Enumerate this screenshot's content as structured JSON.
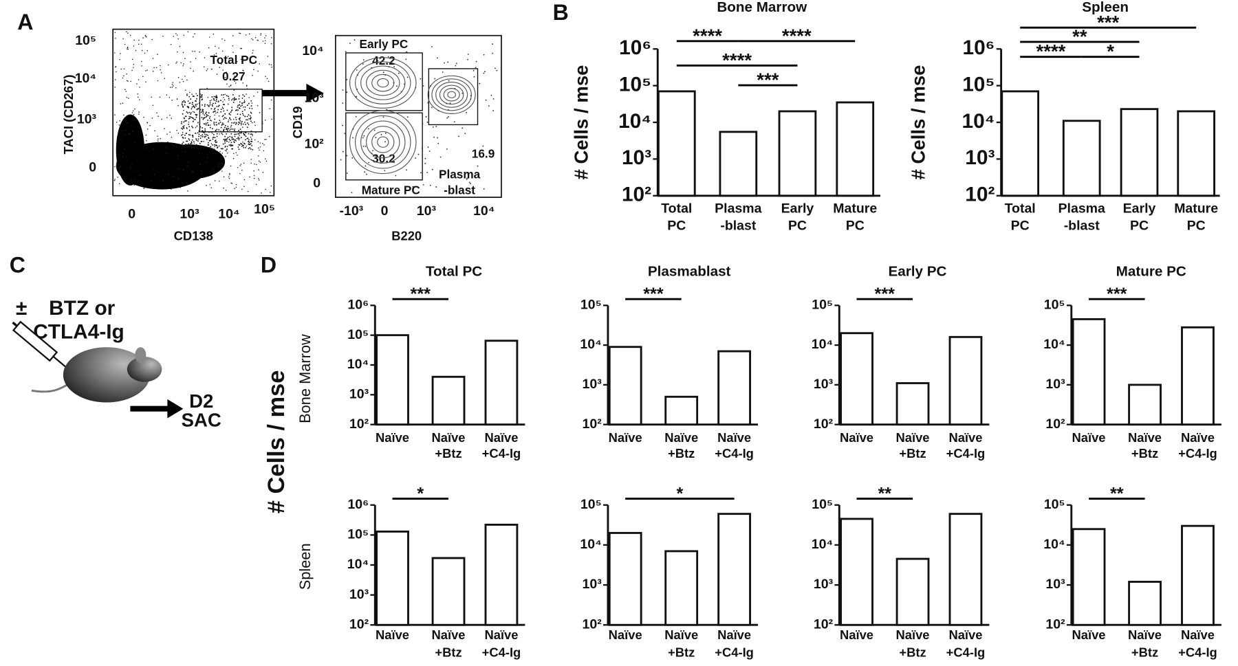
{
  "panel_labels": [
    "A",
    "B",
    "C",
    "D"
  ],
  "panel_a": {
    "plot1": {
      "y_label": "TACI (CD267)",
      "x_label": "CD138",
      "yticks": [
        "10⁵",
        "10⁴",
        "10³",
        "0"
      ],
      "xticks": [
        "0",
        "10³",
        "10⁴",
        "10⁵"
      ],
      "gate": "Total PC",
      "gate_value": "0.27"
    },
    "plot2": {
      "y_label": "CD19",
      "x_label": "B220",
      "yticks": [
        "10⁴",
        "10³",
        "10²",
        "0"
      ],
      "xticks": [
        "-10³",
        "0",
        "10³",
        "10⁴"
      ],
      "gates": [
        {
          "name": [
            "Early PC"
          ],
          "value": "42.2"
        },
        {
          "name": [
            "Mature PC"
          ],
          "value": "30.2"
        },
        {
          "name": [
            "Plasma",
            "-blast"
          ],
          "value": "16.9"
        }
      ]
    }
  },
  "panel_c": {
    "treatment": [
      "±",
      "BTZ or",
      "CTLA4-Ig"
    ],
    "outcome": [
      "D2",
      "SAC"
    ]
  },
  "panel_d": {
    "y_label": "# Cells / mse",
    "rows": [
      "Bone Marrow",
      "Spleen"
    ]
  },
  "chart_data": [
    {
      "type": "bar",
      "title": "Bone Marrow",
      "y_label": "# Cells / mse",
      "log_scale": true,
      "color": "#ffffff",
      "categories": [
        [
          "Total",
          "PC"
        ],
        [
          "Plasma",
          "-blast"
        ],
        [
          "Early",
          "PC"
        ],
        [
          "Mature",
          "PC"
        ]
      ],
      "values": [
        70000,
        5500,
        20000,
        35000
      ],
      "ylim": [
        100,
        1000000
      ],
      "yticks": [
        {
          "value": 100,
          "label": "10²"
        },
        {
          "value": 1000,
          "label": "10³"
        },
        {
          "value": 10000,
          "label": "10⁴"
        },
        {
          "value": 100000,
          "label": "10⁵"
        },
        {
          "value": 1000000,
          "label": "10⁶"
        }
      ],
      "significance": [
        "****",
        "****",
        "****",
        "***"
      ]
    },
    {
      "type": "bar",
      "title": "Spleen",
      "y_label": "# Cells / mse",
      "log_scale": true,
      "color": "#ffffff",
      "categories": [
        [
          "Total",
          "PC"
        ],
        [
          "Plasma",
          "-blast"
        ],
        [
          "Early",
          "PC"
        ],
        [
          "Mature",
          "PC"
        ]
      ],
      "values": [
        70000,
        11000,
        23000,
        20000
      ],
      "ylim": [
        100,
        1000000
      ],
      "yticks": [
        {
          "value": 100,
          "label": "10²"
        },
        {
          "value": 1000,
          "label": "10³"
        },
        {
          "value": 10000,
          "label": "10⁴"
        },
        {
          "value": 100000,
          "label": "10⁵"
        },
        {
          "value": 1000000,
          "label": "10⁶"
        }
      ],
      "significance": [
        "***",
        "**",
        "****",
        "*"
      ]
    },
    {
      "type": "bar",
      "title": "Total PC",
      "log_scale": true,
      "color": "#ffffff",
      "categories": [
        [
          "Naïve"
        ],
        [
          "Naïve",
          "+Btz"
        ],
        [
          "Naïve",
          "+C4-Ig"
        ]
      ],
      "values": [
        100000,
        4000,
        65000
      ],
      "ylim": [
        100,
        1000000
      ],
      "yticks": [
        {
          "value": 100,
          "label": "10²"
        },
        {
          "value": 1000,
          "label": "10³"
        },
        {
          "value": 10000,
          "label": "10⁴"
        },
        {
          "value": 100000,
          "label": "10⁵"
        },
        {
          "value": 1000000,
          "label": "10⁶"
        }
      ],
      "significance": [
        "***"
      ]
    },
    {
      "type": "bar",
      "title": "Plasmablast",
      "log_scale": true,
      "color": "#ffffff",
      "categories": [
        [
          "Naïve"
        ],
        [
          "Naïve",
          "+Btz"
        ],
        [
          "Naïve",
          "+C4-Ig"
        ]
      ],
      "values": [
        9000,
        500,
        7000
      ],
      "ylim": [
        100,
        100000
      ],
      "yticks": [
        {
          "value": 100,
          "label": "10²"
        },
        {
          "value": 1000,
          "label": "10³"
        },
        {
          "value": 10000,
          "label": "10⁴"
        },
        {
          "value": 100000,
          "label": "10⁵"
        }
      ],
      "significance": [
        "***"
      ]
    },
    {
      "type": "bar",
      "title": "Early PC",
      "log_scale": true,
      "color": "#ffffff",
      "categories": [
        [
          "Naïve"
        ],
        [
          "Naïve",
          "+Btz"
        ],
        [
          "Naïve",
          "+C4-Ig"
        ]
      ],
      "values": [
        20000,
        1100,
        16000
      ],
      "ylim": [
        100,
        100000
      ],
      "yticks": [
        {
          "value": 100,
          "label": "10²"
        },
        {
          "value": 1000,
          "label": "10³"
        },
        {
          "value": 10000,
          "label": "10⁴"
        },
        {
          "value": 100000,
          "label": "10⁵"
        }
      ],
      "significance": [
        "***"
      ]
    },
    {
      "type": "bar",
      "title": "Mature PC",
      "log_scale": true,
      "color": "#ffffff",
      "categories": [
        [
          "Naïve"
        ],
        [
          "Naïve",
          "+Btz"
        ],
        [
          "Naïve",
          "+C4-Ig"
        ]
      ],
      "values": [
        45000,
        1000,
        28000
      ],
      "ylim": [
        100,
        100000
      ],
      "yticks": [
        {
          "value": 100,
          "label": "10²"
        },
        {
          "value": 1000,
          "label": "10³"
        },
        {
          "value": 10000,
          "label": "10⁴"
        },
        {
          "value": 100000,
          "label": "10⁵"
        }
      ],
      "significance": [
        "***"
      ]
    },
    {
      "type": "bar",
      "log_scale": true,
      "color": "#ffffff",
      "categories": [
        [
          "Naïve"
        ],
        [
          "Naïve",
          "+Btz"
        ],
        [
          "Naïve",
          "+C4-Ig"
        ]
      ],
      "values": [
        130000,
        17000,
        220000
      ],
      "ylim": [
        100,
        1000000
      ],
      "yticks": [
        {
          "value": 100,
          "label": "10²"
        },
        {
          "value": 1000,
          "label": "10³"
        },
        {
          "value": 10000,
          "label": "10⁴"
        },
        {
          "value": 100000,
          "label": "10⁵"
        },
        {
          "value": 1000000,
          "label": "10⁶"
        }
      ],
      "significance": [
        "*"
      ]
    },
    {
      "type": "bar",
      "log_scale": true,
      "color": "#ffffff",
      "categories": [
        [
          "Naïve"
        ],
        [
          "Naïve",
          "+Btz"
        ],
        [
          "Naïve",
          "+C4-Ig"
        ]
      ],
      "values": [
        20000,
        7000,
        60000
      ],
      "ylim": [
        100,
        100000
      ],
      "yticks": [
        {
          "value": 100,
          "label": "10²"
        },
        {
          "value": 1000,
          "label": "10³"
        },
        {
          "value": 10000,
          "label": "10⁴"
        },
        {
          "value": 100000,
          "label": "10⁵"
        }
      ],
      "significance": [
        "*"
      ]
    },
    {
      "type": "bar",
      "log_scale": true,
      "color": "#ffffff",
      "categories": [
        [
          "Naïve"
        ],
        [
          "Naïve",
          "+Btz"
        ],
        [
          "Naïve",
          "+C4-Ig"
        ]
      ],
      "values": [
        45000,
        4500,
        60000
      ],
      "ylim": [
        100,
        100000
      ],
      "yticks": [
        {
          "value": 100,
          "label": "10²"
        },
        {
          "value": 1000,
          "label": "10³"
        },
        {
          "value": 10000,
          "label": "10⁴"
        },
        {
          "value": 100000,
          "label": "10⁵"
        }
      ],
      "significance": [
        "**"
      ]
    },
    {
      "type": "bar",
      "log_scale": true,
      "color": "#ffffff",
      "categories": [
        [
          "Naïve"
        ],
        [
          "Naïve",
          "+Btz"
        ],
        [
          "Naïve",
          "+C4-Ig"
        ]
      ],
      "values": [
        25000,
        1200,
        30000
      ],
      "ylim": [
        100,
        100000
      ],
      "yticks": [
        {
          "value": 100,
          "label": "10²"
        },
        {
          "value": 1000,
          "label": "10³"
        },
        {
          "value": 10000,
          "label": "10⁴"
        },
        {
          "value": 100000,
          "label": "10⁵"
        }
      ],
      "significance": [
        "**"
      ]
    }
  ]
}
